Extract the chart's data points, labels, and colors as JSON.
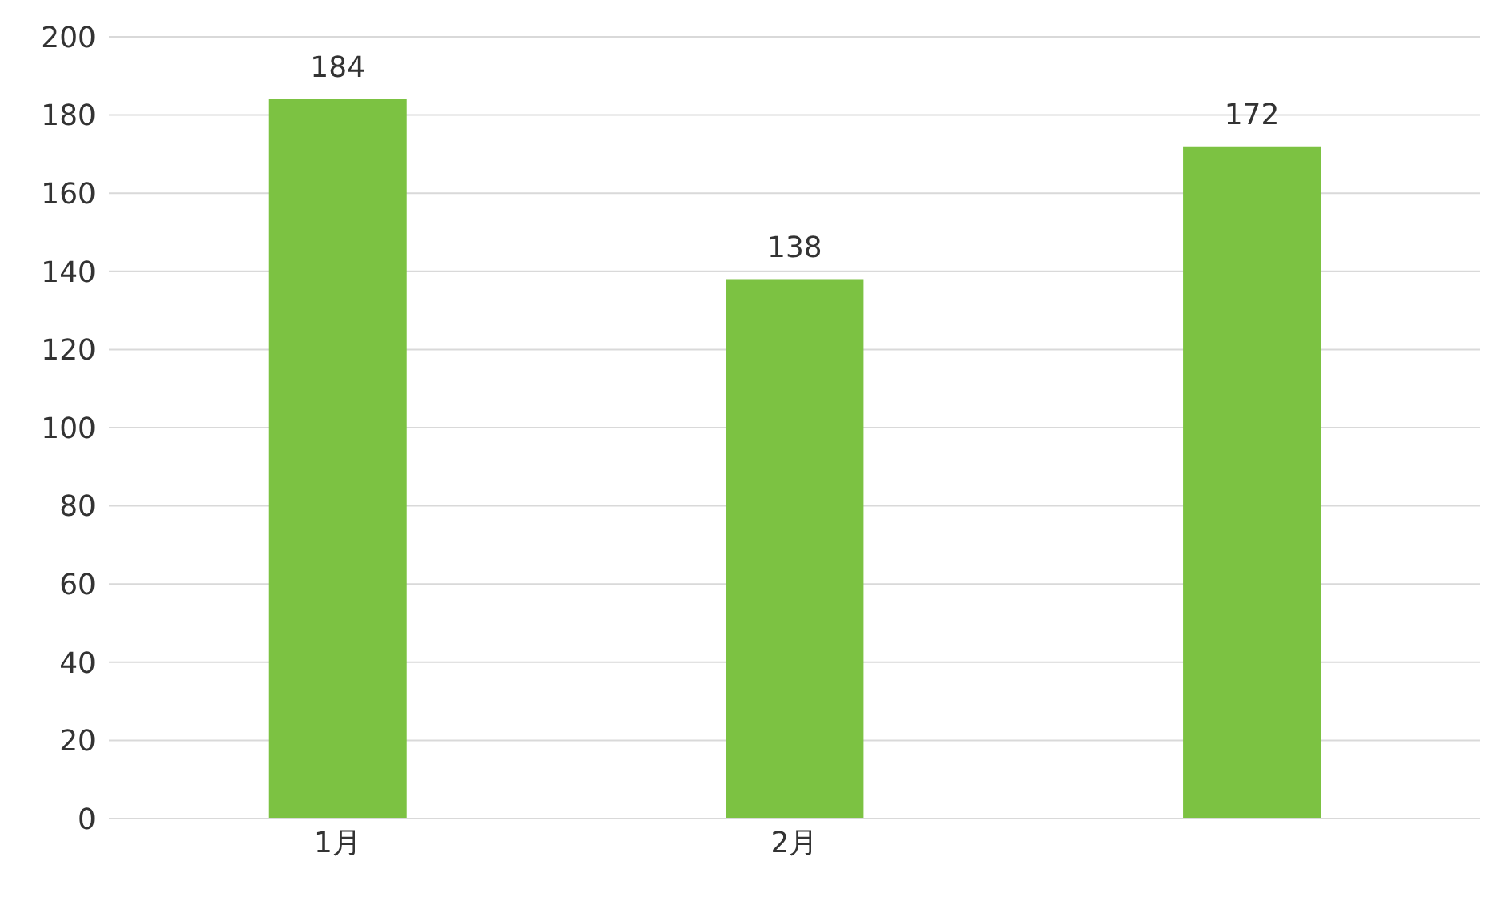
{
  "chart_data": {
    "type": "bar",
    "categories": [
      "1月",
      "2月",
      null
    ],
    "values": [
      184,
      138,
      172
    ],
    "color": "#7cc242",
    "ylim": [
      0,
      200
    ],
    "yticks": [
      0,
      20,
      40,
      60,
      80,
      100,
      120,
      140,
      160,
      180,
      200
    ],
    "grid": "y",
    "data_labels": true
  }
}
